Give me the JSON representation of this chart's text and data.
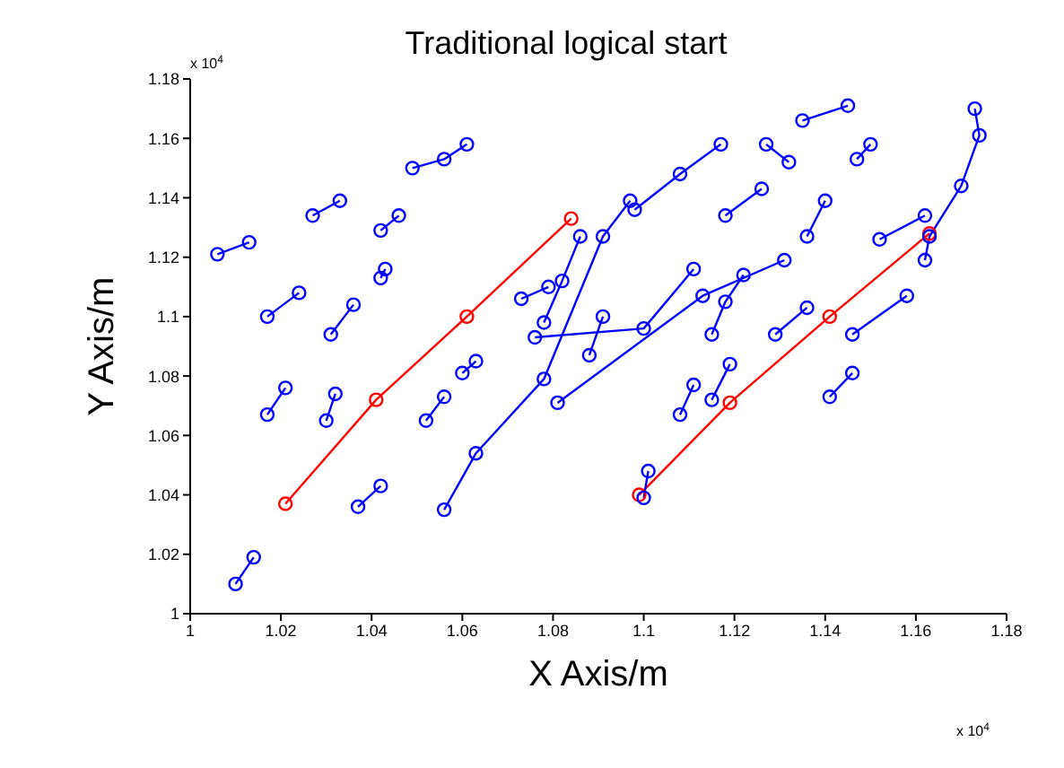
{
  "chart_data": {
    "type": "line",
    "title": "Traditional logical start",
    "xlabel": "X Axis/m",
    "ylabel": "Y Axis/m",
    "annotations": [
      "x 10$^{4}$",
      "x 10$^{4}$"
    ],
    "xlim": [
      1,
      1.18
    ],
    "xticks": [
      1,
      1.02,
      1.04,
      1.06,
      1.08,
      1.1,
      1.12,
      1.14,
      1.16,
      1.18
    ],
    "ylim": [
      1,
      1.18
    ],
    "yticks": [
      1,
      1.02,
      1.04,
      1.06,
      1.08,
      1.1,
      1.12,
      1.14,
      1.16,
      1.18
    ],
    "marker": "circle",
    "line_style": "solid",
    "series": [
      {
        "color": "#ff0000",
        "x": [
          1.021,
          1.041,
          1.061,
          1.084
        ],
        "values": [
          1.037,
          1.072,
          1.1,
          1.133
        ]
      },
      {
        "color": "#ff0000",
        "x": [
          1.099,
          1.119,
          1.141,
          1.163
        ],
        "values": [
          1.04,
          1.071,
          1.1,
          1.128
        ]
      },
      {
        "color": "#0000ff",
        "x": [
          1.006,
          1.013
        ],
        "values": [
          1.121,
          1.125
        ]
      },
      {
        "color": "#0000ff",
        "x": [
          1.033,
          1.027
        ],
        "values": [
          1.139,
          1.134
        ]
      },
      {
        "color": "#0000ff",
        "x": [
          1.061,
          1.056,
          1.049
        ],
        "values": [
          1.158,
          1.153,
          1.15
        ]
      },
      {
        "color": "#0000ff",
        "x": [
          1.042,
          1.046
        ],
        "values": [
          1.129,
          1.134
        ]
      },
      {
        "color": "#0000ff",
        "x": [
          1.017,
          1.024
        ],
        "values": [
          1.1,
          1.108
        ]
      },
      {
        "color": "#0000ff",
        "x": [
          1.017,
          1.021
        ],
        "values": [
          1.067,
          1.076
        ]
      },
      {
        "color": "#0000ff",
        "x": [
          1.01,
          1.014
        ],
        "values": [
          1.01,
          1.019
        ]
      },
      {
        "color": "#0000ff",
        "x": [
          1.037,
          1.042
        ],
        "values": [
          1.036,
          1.043
        ]
      },
      {
        "color": "#0000ff",
        "x": [
          1.043,
          1.042
        ],
        "values": [
          1.116,
          1.113
        ]
      },
      {
        "color": "#0000ff",
        "x": [
          1.031,
          1.036
        ],
        "values": [
          1.094,
          1.104
        ]
      },
      {
        "color": "#0000ff",
        "x": [
          1.03,
          1.032
        ],
        "values": [
          1.065,
          1.074
        ]
      },
      {
        "color": "#0000ff",
        "x": [
          1.052,
          1.056
        ],
        "values": [
          1.065,
          1.073
        ]
      },
      {
        "color": "#0000ff",
        "x": [
          1.063,
          1.06
        ],
        "values": [
          1.085,
          1.081
        ]
      },
      {
        "color": "#0000ff",
        "x": [
          1.056,
          1.063,
          1.078,
          1.091,
          1.097
        ],
        "values": [
          1.035,
          1.054,
          1.079,
          1.127,
          1.139
        ]
      },
      {
        "color": "#0000ff",
        "x": [
          1.081,
          1.113,
          1.131
        ],
        "values": [
          1.071,
          1.107,
          1.119
        ]
      },
      {
        "color": "#0000ff",
        "x": [
          1.076,
          1.1,
          1.111
        ],
        "values": [
          1.093,
          1.096,
          1.116
        ]
      },
      {
        "color": "#0000ff",
        "x": [
          1.078,
          1.082,
          1.086
        ],
        "values": [
          1.098,
          1.112,
          1.127
        ]
      },
      {
        "color": "#0000ff",
        "x": [
          1.117,
          1.108,
          1.098
        ],
        "values": [
          1.158,
          1.148,
          1.136
        ]
      },
      {
        "color": "#0000ff",
        "x": [
          1.145,
          1.135
        ],
        "values": [
          1.171,
          1.166
        ]
      },
      {
        "color": "#0000ff",
        "x": [
          1.173,
          1.174,
          1.17,
          1.163,
          1.162
        ],
        "values": [
          1.17,
          1.161,
          1.144,
          1.127,
          1.119
        ]
      },
      {
        "color": "#0000ff",
        "x": [
          1.132,
          1.127
        ],
        "values": [
          1.152,
          1.158
        ]
      },
      {
        "color": "#0000ff",
        "x": [
          1.15,
          1.147
        ],
        "values": [
          1.158,
          1.153
        ]
      },
      {
        "color": "#0000ff",
        "x": [
          1.122,
          1.118,
          1.115
        ],
        "values": [
          1.114,
          1.105,
          1.094
        ]
      },
      {
        "color": "#0000ff",
        "x": [
          1.152,
          1.162
        ],
        "values": [
          1.126,
          1.134
        ]
      },
      {
        "color": "#0000ff",
        "x": [
          1.146,
          1.158
        ],
        "values": [
          1.094,
          1.107
        ]
      },
      {
        "color": "#0000ff",
        "x": [
          1.141,
          1.146
        ],
        "values": [
          1.073,
          1.081
        ]
      },
      {
        "color": "#0000ff",
        "x": [
          1.129,
          1.136
        ],
        "values": [
          1.094,
          1.103
        ]
      },
      {
        "color": "#0000ff",
        "x": [
          1.115,
          1.119
        ],
        "values": [
          1.072,
          1.084
        ]
      },
      {
        "color": "#0000ff",
        "x": [
          1.118,
          1.126
        ],
        "values": [
          1.134,
          1.143
        ]
      },
      {
        "color": "#0000ff",
        "x": [
          1.136,
          1.14
        ],
        "values": [
          1.127,
          1.139
        ]
      },
      {
        "color": "#0000ff",
        "x": [
          1.108,
          1.111
        ],
        "values": [
          1.067,
          1.077
        ]
      },
      {
        "color": "#0000ff",
        "x": [
          1.1,
          1.101
        ],
        "values": [
          1.039,
          1.048
        ]
      },
      {
        "color": "#0000ff",
        "x": [
          1.073,
          1.079
        ],
        "values": [
          1.106,
          1.11
        ]
      },
      {
        "color": "#0000ff",
        "x": [
          1.091,
          1.088
        ],
        "values": [
          1.1,
          1.087
        ]
      }
    ]
  }
}
